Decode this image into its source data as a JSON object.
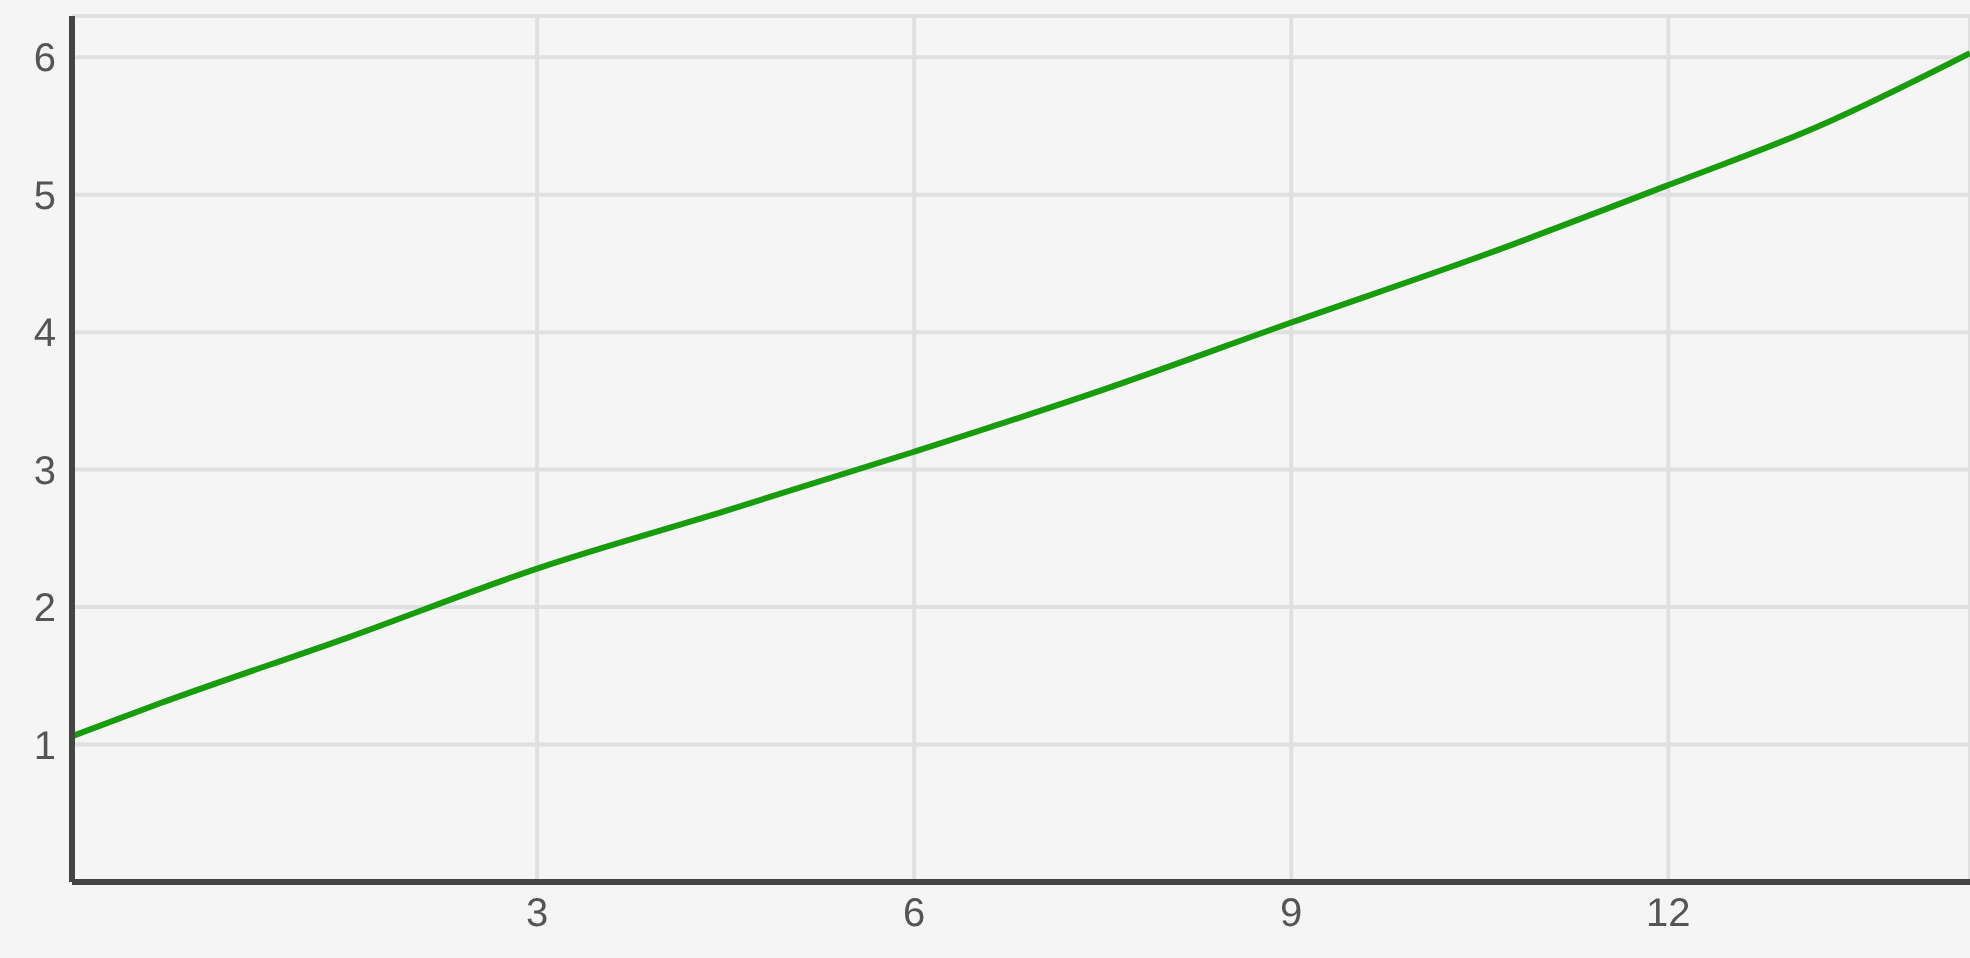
{
  "chart_data": {
    "type": "line",
    "x": [
      -0.7,
      0,
      1.5,
      3,
      4.5,
      6,
      7.5,
      9,
      10.5,
      12,
      13.2,
      14.4
    ],
    "series": [
      {
        "color": "#179c0b",
        "values": [
          1.06,
          1.3,
          1.78,
          2.28,
          2.7,
          3.13,
          3.58,
          4.07,
          4.55,
          5.07,
          5.5,
          6.03
        ]
      }
    ],
    "xlim": [
      -0.7,
      14.4
    ],
    "ylim": [
      0,
      6.3
    ],
    "xticks": [
      3,
      6,
      9,
      12
    ],
    "yticks": [
      1,
      2,
      3,
      4,
      5,
      6
    ],
    "grid": true,
    "marker": "none",
    "line_style": "solid"
  }
}
